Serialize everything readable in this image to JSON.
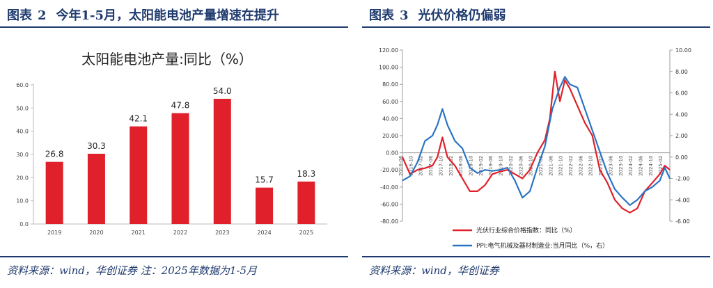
{
  "left_panel": {
    "label": "图表",
    "number": "2",
    "title": "今年1-5月，太阳能电池产量增速在提升",
    "source": "资料来源：wind，华创证券 注：2025年数据为1-5月"
  },
  "right_panel": {
    "label": "图表",
    "number": "3",
    "title": "光伏价格仍偏弱",
    "source": "资料来源：wind，华创证券"
  },
  "colors": {
    "navy": "#1f3a6e",
    "bar": "#e0202a",
    "red_line": "#e0202a",
    "blue_line": "#2a74c2"
  },
  "chart_data": [
    {
      "type": "bar",
      "title": "太阳能电池产量:同比（%）",
      "categories": [
        "2019",
        "2020",
        "2021",
        "2022",
        "2023",
        "2024",
        "2025"
      ],
      "values": [
        26.8,
        30.3,
        42.1,
        47.8,
        54.0,
        15.7,
        18.3
      ],
      "value_labels": [
        "26.8",
        "30.3",
        "42.1",
        "47.8",
        "54.0",
        "15.7",
        "18.3"
      ],
      "ylim": [
        0,
        60
      ],
      "yticks": [
        "0.0",
        "10.0",
        "20.0",
        "30.0",
        "40.0",
        "50.0",
        "60.0"
      ],
      "grid": false,
      "color": "#e0202a"
    },
    {
      "type": "line",
      "dual_axis": true,
      "ylim_left": [
        -80,
        120
      ],
      "ylim_right": [
        -6,
        10
      ],
      "yticks_left": [
        "-80.00",
        "-60.00",
        "-40.00",
        "-20.00",
        "0.00",
        "20.00",
        "40.00",
        "60.00",
        "80.00",
        "100.00",
        "120.00"
      ],
      "yticks_right": [
        "-6.00",
        "-4.00",
        "-2.00",
        "0.00",
        "2.00",
        "4.00",
        "6.00",
        "8.00",
        "10.00"
      ],
      "x_start": "2016-06",
      "x_end": "2025-05",
      "x_ticks": [
        "2016-06",
        "2016-10",
        "2017-02",
        "2017-06",
        "2017-10",
        "2018-02",
        "2018-06",
        "2018-10",
        "2019-02",
        "2019-06",
        "2019-10",
        "2020-02",
        "2020-06",
        "2020-10",
        "2021-02",
        "2021-06",
        "2021-10",
        "2022-02",
        "2022-06",
        "2022-10",
        "2023-02",
        "2023-06",
        "2023-10",
        "2024-02",
        "2024-06",
        "2024-10",
        "2025-02"
      ],
      "legend_position": "bottom",
      "series": [
        {
          "name": "光伏行业综合价格指数：同比（%）",
          "axis": "left",
          "color": "#e0202a",
          "x": [
            "2016-06",
            "2016-09",
            "2016-12",
            "2017-03",
            "2017-06",
            "2017-08",
            "2017-10",
            "2017-12",
            "2018-03",
            "2018-06",
            "2018-09",
            "2018-12",
            "2019-03",
            "2019-06",
            "2019-09",
            "2019-12",
            "2020-03",
            "2020-06",
            "2020-09",
            "2020-12",
            "2021-03",
            "2021-05",
            "2021-07",
            "2021-09",
            "2021-11",
            "2022-01",
            "2022-04",
            "2022-07",
            "2022-10",
            "2023-01",
            "2023-04",
            "2023-07",
            "2023-10",
            "2024-01",
            "2024-04",
            "2024-07",
            "2024-10",
            "2025-01",
            "2025-03",
            "2025-05"
          ],
          "y": [
            -5,
            -25,
            -20,
            -18,
            -15,
            -5,
            18,
            -5,
            -15,
            -30,
            -45,
            -45,
            -38,
            -25,
            -22,
            -20,
            -25,
            -30,
            -20,
            0,
            15,
            40,
            95,
            60,
            85,
            75,
            55,
            35,
            20,
            -20,
            -35,
            -55,
            -65,
            -70,
            -65,
            -45,
            -35,
            -25,
            -15,
            -20
          ]
        },
        {
          "name": "PPI:电气机械及器材制造业:当月同比（%，右）",
          "axis": "right",
          "color": "#2a74c2",
          "x": [
            "2016-06",
            "2016-09",
            "2016-12",
            "2017-03",
            "2017-06",
            "2017-08",
            "2017-10",
            "2017-12",
            "2018-03",
            "2018-06",
            "2018-09",
            "2018-12",
            "2019-03",
            "2019-06",
            "2019-09",
            "2019-12",
            "2020-03",
            "2020-06",
            "2020-09",
            "2020-12",
            "2021-03",
            "2021-06",
            "2021-09",
            "2021-11",
            "2022-01",
            "2022-04",
            "2022-07",
            "2022-10",
            "2023-01",
            "2023-04",
            "2023-07",
            "2023-10",
            "2024-01",
            "2024-04",
            "2024-07",
            "2024-10",
            "2025-01",
            "2025-03",
            "2025-05"
          ],
          "y": [
            -2.2,
            -1.8,
            -0.5,
            1.5,
            2.0,
            3.0,
            4.5,
            3.0,
            1.5,
            0.8,
            -1.0,
            -1.5,
            -1.2,
            -1.3,
            -1.2,
            -1.0,
            -2.2,
            -3.8,
            -3.2,
            -1.0,
            1.0,
            4.5,
            6.5,
            7.5,
            6.8,
            6.5,
            4.5,
            2.5,
            0.5,
            -1.5,
            -3.0,
            -3.8,
            -4.5,
            -4.0,
            -3.2,
            -2.8,
            -2.2,
            -1.0,
            -2.0
          ]
        }
      ]
    }
  ]
}
